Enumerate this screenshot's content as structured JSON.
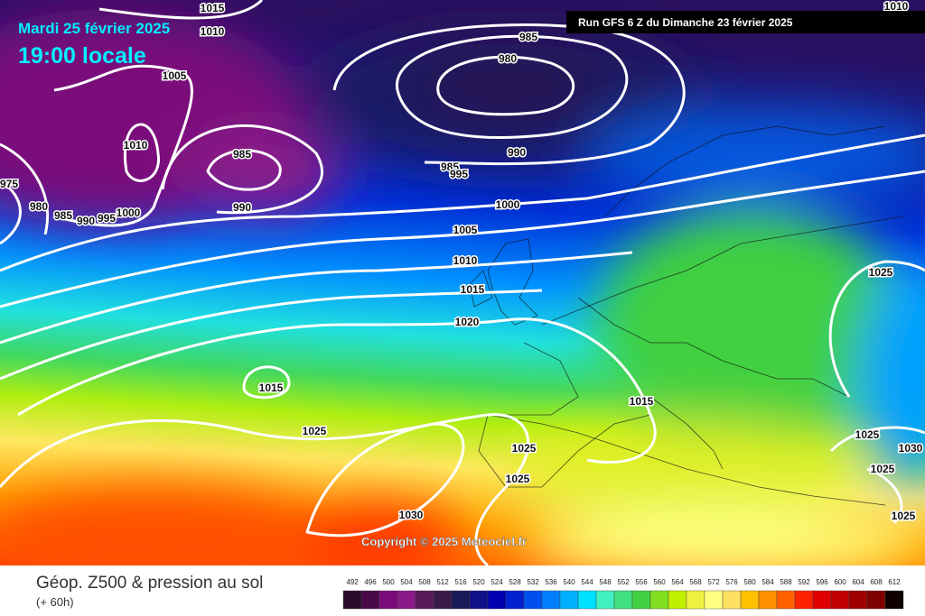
{
  "header": {
    "date": "Mardi 25 février 2025",
    "time": "19:00 locale",
    "run": "Run GFS 6 Z du Dimanche 23 février 2025",
    "copyright": "Copyright © 2025 Meteociel.fr"
  },
  "footer": {
    "title": "Géop. Z500 & pression au sol",
    "lead": "(+ 60h)"
  },
  "legend": {
    "values": [
      492,
      496,
      500,
      504,
      508,
      512,
      516,
      520,
      524,
      528,
      532,
      536,
      540,
      544,
      548,
      552,
      556,
      560,
      564,
      568,
      572,
      576,
      580,
      584,
      588,
      592,
      596,
      600,
      604,
      608,
      612
    ],
    "colors": [
      "#2a0a2a",
      "#4a0a4a",
      "#7a0a7a",
      "#8a1a8a",
      "#5a1a5a",
      "#3a1a4a",
      "#1a1a5a",
      "#10108a",
      "#0000b0",
      "#0020d0",
      "#0050f0",
      "#0080ff",
      "#00b0ff",
      "#00e0ff",
      "#40f0c0",
      "#40e080",
      "#40d040",
      "#80e020",
      "#c0f000",
      "#f0f040",
      "#ffff80",
      "#ffe060",
      "#ffc000",
      "#ff9000",
      "#ff6000",
      "#ff2000",
      "#e00000",
      "#c00000",
      "#a00000",
      "#800000",
      "#100000"
    ]
  },
  "isobar_labels": [
    1015,
    1010,
    1005,
    1010,
    985,
    990,
    975,
    980,
    985,
    990,
    995,
    1000,
    985,
    980,
    990,
    985,
    995,
    1000,
    1005,
    1010,
    1015,
    1020,
    1015,
    1025,
    1015,
    1025,
    1025,
    1030,
    1025,
    1025,
    1025,
    1030,
    1025,
    1010
  ]
}
